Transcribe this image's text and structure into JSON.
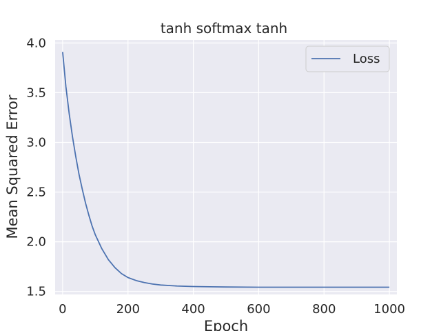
{
  "chart_data": {
    "type": "line",
    "title": "tanh softmax tanh",
    "xlabel": "Epoch",
    "ylabel": "Mean Squared Error",
    "xlim": [
      -23,
      1023
    ],
    "ylim": [
      1.47,
      4.03
    ],
    "x_ticks": [
      0,
      200,
      400,
      600,
      800,
      1000
    ],
    "y_ticks": [
      1.5,
      2.0,
      2.5,
      3.0,
      3.5,
      4.0
    ],
    "x_tick_labels": [
      "0",
      "200",
      "400",
      "600",
      "800",
      "1000"
    ],
    "y_tick_labels": [
      "1.5",
      "2.0",
      "2.5",
      "3.0",
      "3.5",
      "4.0"
    ],
    "grid": true,
    "legend_position": "top-right",
    "series": [
      {
        "name": "Loss",
        "color": "#4c72b0",
        "x": [
          0,
          10,
          20,
          30,
          40,
          50,
          60,
          70,
          80,
          90,
          100,
          120,
          140,
          160,
          180,
          200,
          225,
          250,
          275,
          300,
          350,
          400,
          450,
          500,
          600,
          700,
          800,
          900,
          1000
        ],
        "y": [
          3.91,
          3.56,
          3.29,
          3.06,
          2.86,
          2.68,
          2.53,
          2.39,
          2.27,
          2.16,
          2.07,
          1.93,
          1.82,
          1.74,
          1.68,
          1.64,
          1.61,
          1.59,
          1.575,
          1.565,
          1.555,
          1.55,
          1.547,
          1.545,
          1.543,
          1.543,
          1.543,
          1.543,
          1.543
        ]
      }
    ]
  },
  "colors": {
    "plot_background": "#eaeaf2",
    "grid": "#ffffff",
    "text": "#262626",
    "line": "#4c72b0"
  }
}
